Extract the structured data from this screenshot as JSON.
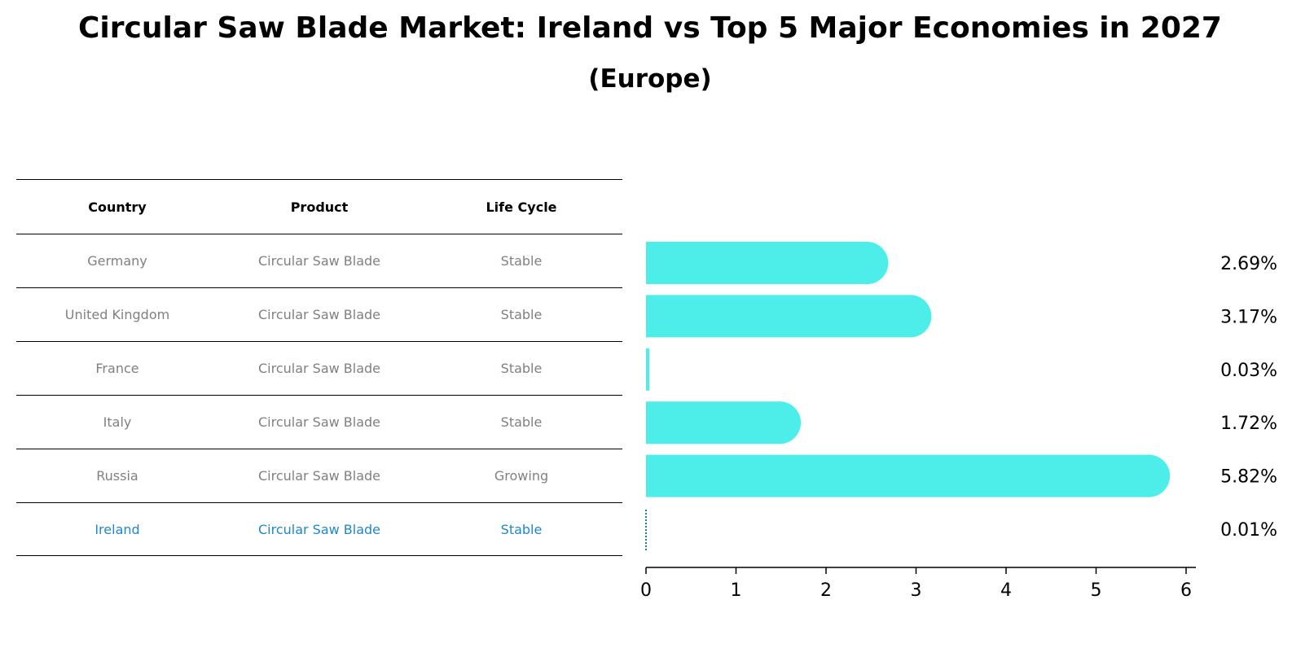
{
  "title": "Circular Saw Blade Market: Ireland vs Top 5 Major Economies in 2027",
  "subtitle": "(Europe)",
  "table": {
    "headers": [
      "Country",
      "Product",
      "Life Cycle"
    ],
    "rows": [
      {
        "country": "Germany",
        "product": "Circular Saw Blade",
        "life_cycle": "Stable"
      },
      {
        "country": "United Kingdom",
        "product": "Circular Saw Blade",
        "life_cycle": "Stable"
      },
      {
        "country": "France",
        "product": "Circular Saw Blade",
        "life_cycle": "Stable"
      },
      {
        "country": "Italy",
        "product": "Circular Saw Blade",
        "life_cycle": "Stable"
      },
      {
        "country": "Russia",
        "product": "Circular Saw Blade",
        "life_cycle": "Growing"
      },
      {
        "country": "Ireland",
        "product": "Circular Saw Blade",
        "life_cycle": "Stable"
      }
    ]
  },
  "chart_data": {
    "type": "bar",
    "orientation": "horizontal",
    "categories": [
      "Germany",
      "United Kingdom",
      "France",
      "Italy",
      "Russia",
      "Ireland"
    ],
    "values": [
      2.69,
      3.17,
      0.03,
      1.72,
      5.82,
      0.01
    ],
    "value_labels": [
      "2.69%",
      "3.17%",
      "0.03%",
      "1.72%",
      "5.82%",
      "0.01%"
    ],
    "xlim": [
      0,
      6
    ],
    "xticks": [
      "0",
      "1",
      "2",
      "3",
      "4",
      "5",
      "6"
    ],
    "highlight_category": "Ireland",
    "bar_color": "#4deeea",
    "highlight_color": "#1f77b4",
    "grid": false
  }
}
